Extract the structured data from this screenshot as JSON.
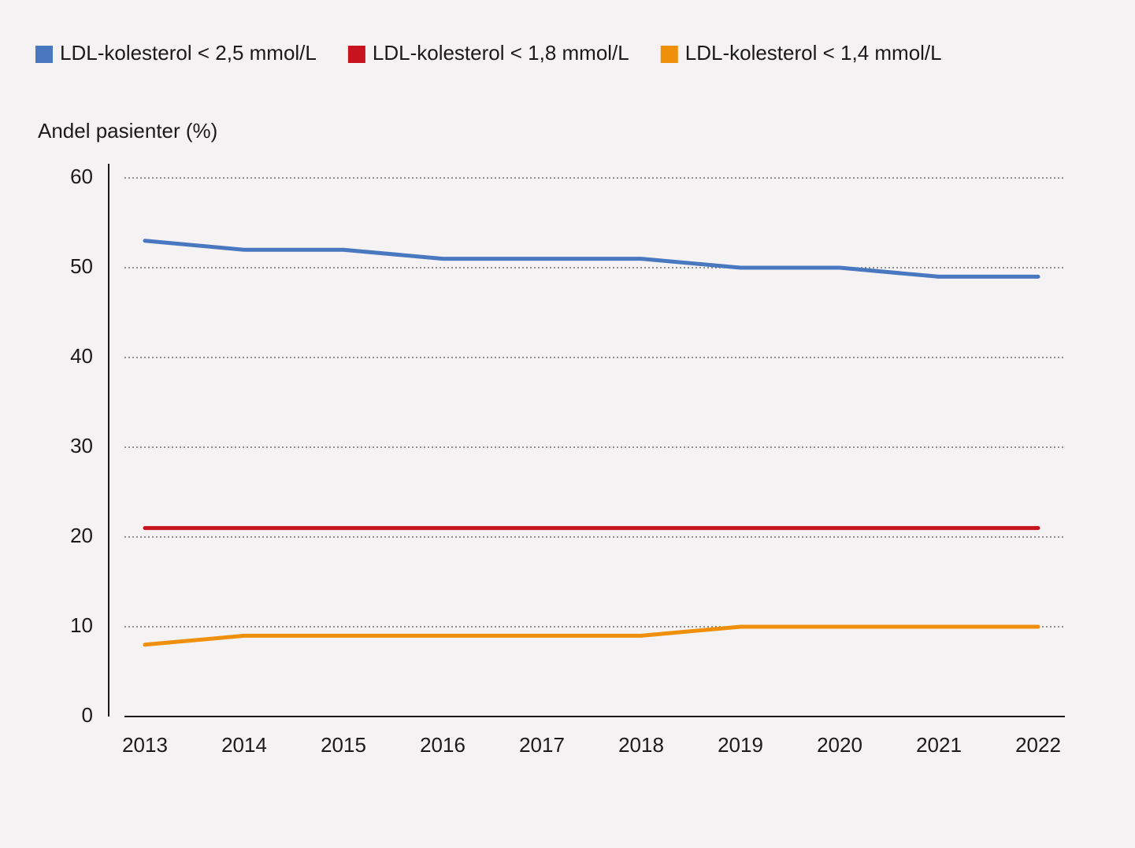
{
  "chart_data": {
    "type": "line",
    "y_label": "Andel pasienter (%)",
    "categories": [
      "2013",
      "2014",
      "2015",
      "2016",
      "2017",
      "2018",
      "2019",
      "2020",
      "2021",
      "2022"
    ],
    "series": [
      {
        "name": "LDL-kolesterol < 2,5 mmol/L",
        "color": "#4a78c0",
        "values": [
          53,
          52,
          52,
          51,
          51,
          51,
          50,
          50,
          49,
          49
        ]
      },
      {
        "name": "LDL-kolesterol < 1,8 mmol/L",
        "color": "#c8141e",
        "values": [
          21,
          21,
          21,
          21,
          21,
          21,
          21,
          21,
          21,
          21
        ]
      },
      {
        "name": "LDL-kolesterol < 1,4 mmol/L",
        "color": "#f0900a",
        "values": [
          8,
          9,
          9,
          9,
          9,
          9,
          10,
          10,
          10,
          10
        ]
      }
    ],
    "ylim": [
      0,
      60
    ],
    "yticks": [
      0,
      10,
      20,
      30,
      40,
      50,
      60
    ],
    "grid": true,
    "legend": "top"
  }
}
